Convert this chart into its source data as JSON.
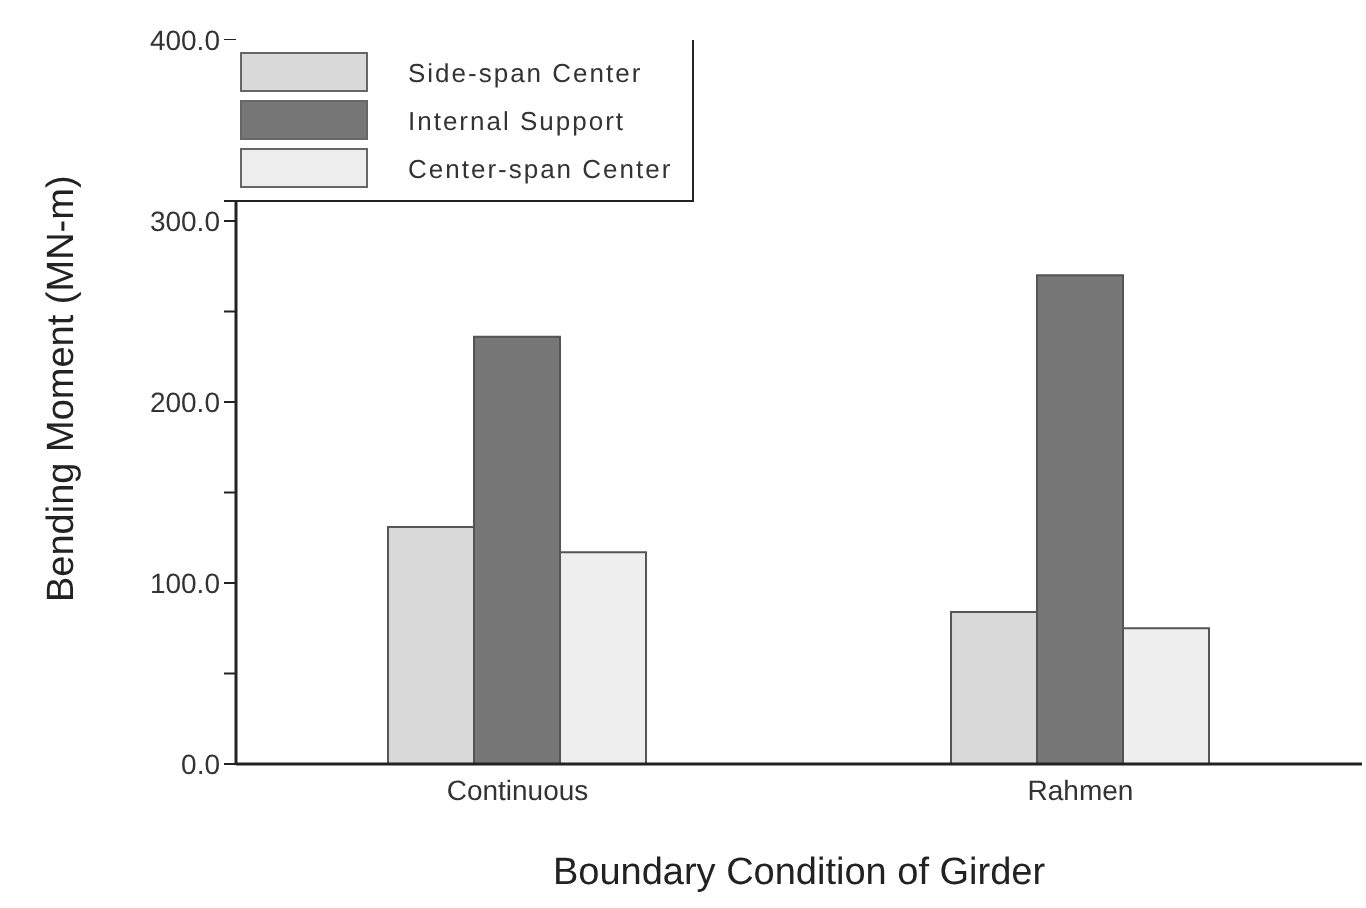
{
  "chart_data": {
    "type": "bar",
    "xlabel": "Boundary Condition of Girder",
    "ylabel": "Bending Moment (MN-m)",
    "categories": [
      "Continuous",
      "Rahmen"
    ],
    "series": [
      {
        "name": "Side-span Center",
        "color": "#d9d9d9",
        "values": [
          131,
          84
        ]
      },
      {
        "name": "Internal Support",
        "color": "#777777",
        "values": [
          236,
          270
        ]
      },
      {
        "name": "Center-span Center",
        "color": "#eeeeee",
        "values": [
          117,
          75
        ]
      }
    ],
    "ylim": [
      0,
      400
    ],
    "yticks": [
      {
        "value": 0,
        "label": "0.0"
      },
      {
        "value": 50,
        "label": null
      },
      {
        "value": 100,
        "label": "100.0"
      },
      {
        "value": 150,
        "label": null
      },
      {
        "value": 200,
        "label": "200.0"
      },
      {
        "value": 250,
        "label": null
      },
      {
        "value": 300,
        "label": "300.0"
      },
      {
        "value": 350,
        "label": null
      },
      {
        "value": 400,
        "label": "400.0"
      }
    ],
    "grid": false,
    "legend": "top left"
  }
}
